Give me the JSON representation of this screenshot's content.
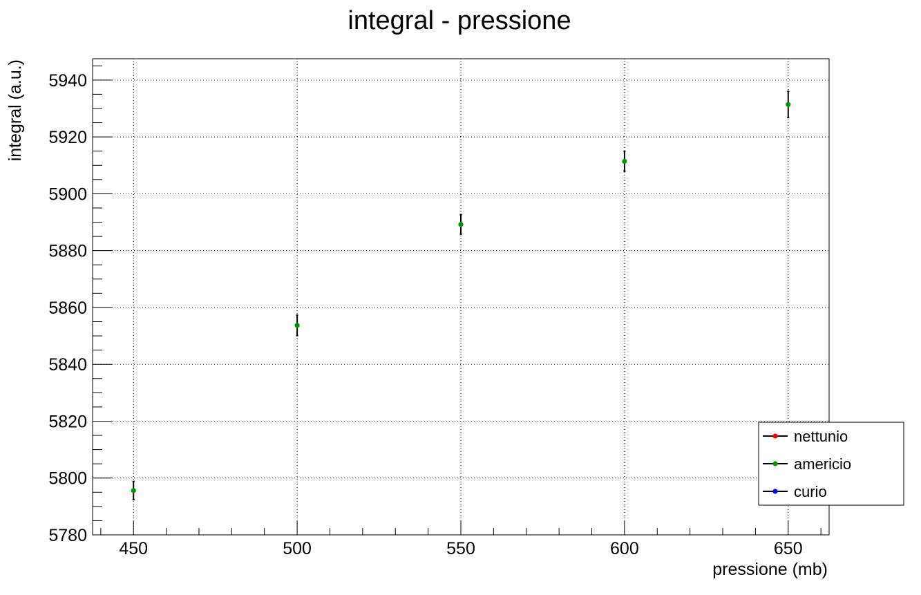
{
  "chart_data": {
    "type": "scatter",
    "title": "integral - pressione",
    "xlabel": "pressione (mb)",
    "ylabel": "integral (a.u.)",
    "xlim": [
      437.5,
      662.5
    ],
    "ylim": [
      5780,
      5947.5
    ],
    "x_ticks": [
      450,
      500,
      550,
      600,
      650
    ],
    "y_ticks": [
      5780,
      5800,
      5820,
      5840,
      5860,
      5880,
      5900,
      5920,
      5940
    ],
    "grid": true,
    "legend_position": "bottom-right",
    "legend": [
      {
        "name": "nettunio",
        "color": "#ff0000"
      },
      {
        "name": "americio",
        "color": "#009900"
      },
      {
        "name": "curio",
        "color": "#0000ff"
      }
    ],
    "series": [
      {
        "name": "americio",
        "color": "#009900",
        "x": [
          450,
          500,
          550,
          600,
          650
        ],
        "y": [
          5795.6,
          5853.7,
          5889.2,
          5911.4,
          5931.4
        ],
        "yerr": [
          3.2,
          3.6,
          3.4,
          3.5,
          4.6
        ]
      }
    ]
  }
}
